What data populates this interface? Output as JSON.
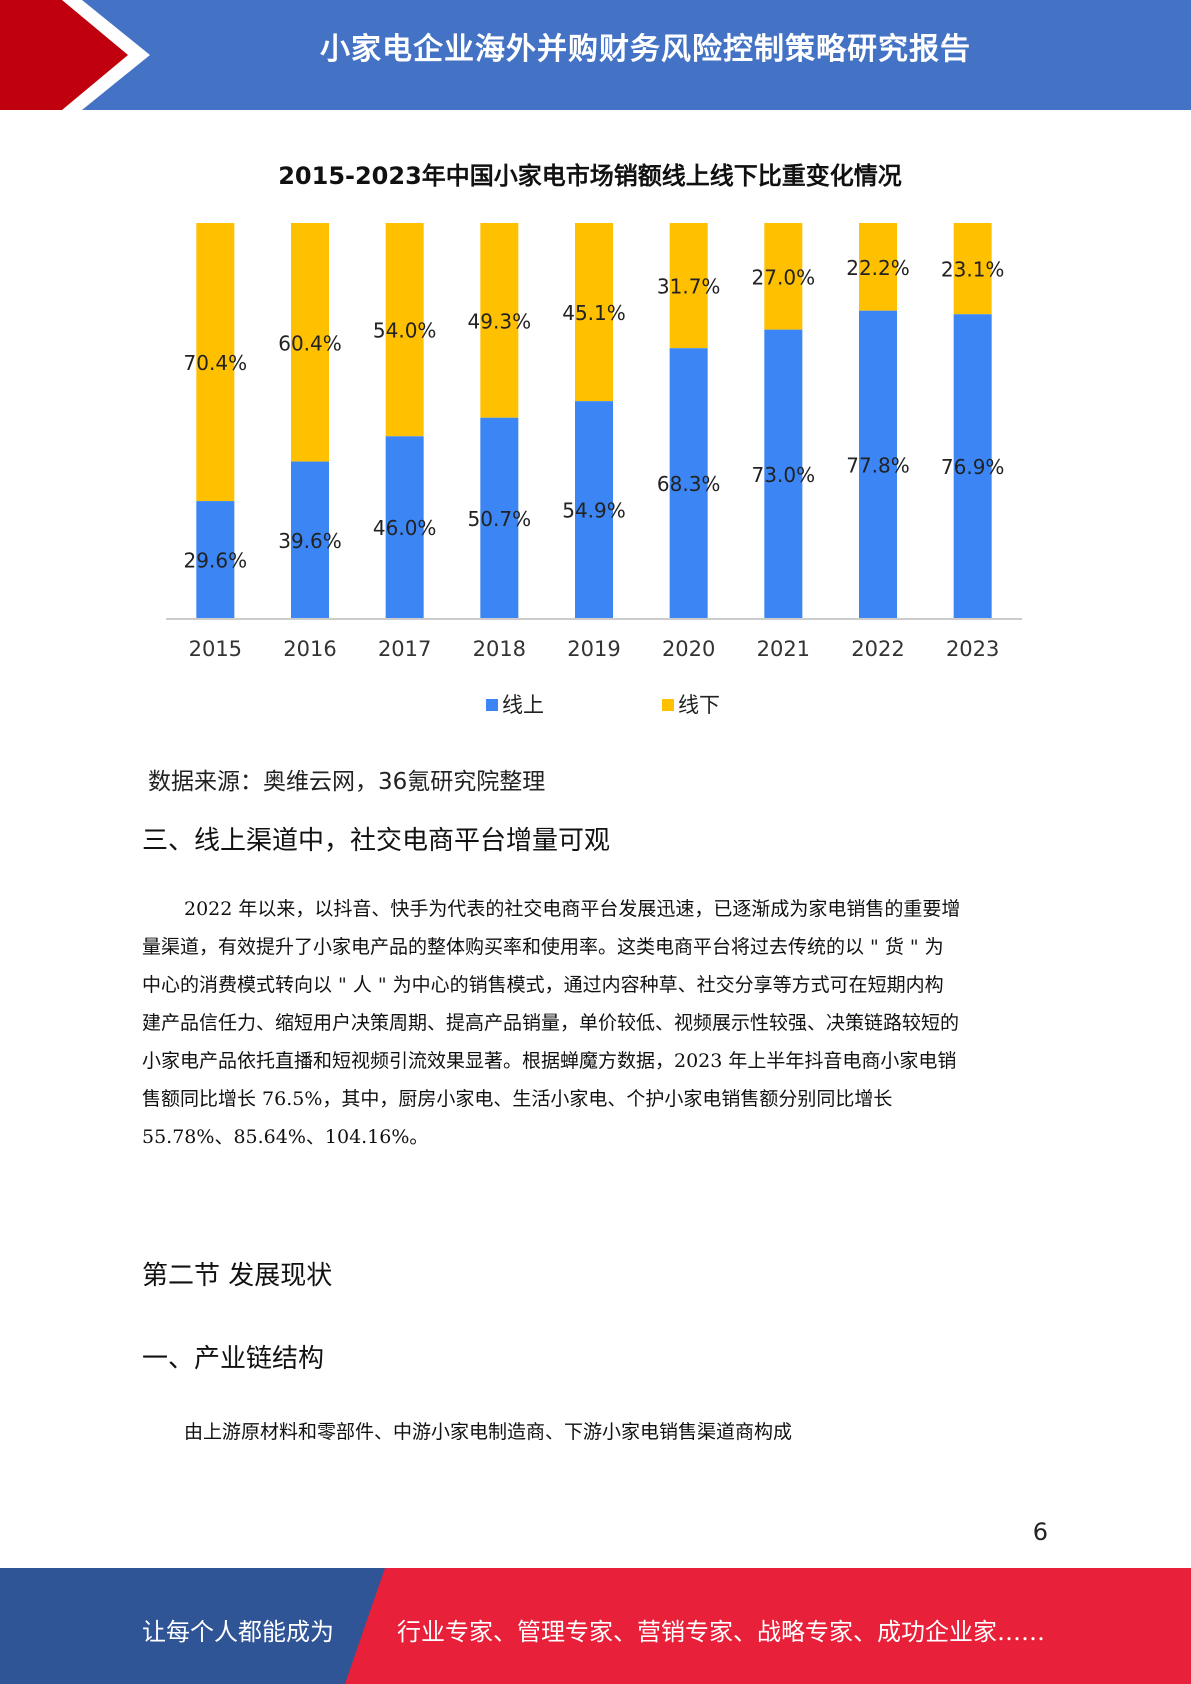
{
  "header": {
    "title": "小家电企业海外并购财务风险控制策略研究报告",
    "colors": {
      "band": "#4472c4",
      "arrow": "#c0000e"
    }
  },
  "chart_data": {
    "type": "bar",
    "stacked": true,
    "title": "2015-2023年中国小家电市场销额线上线下比重变化情况",
    "categories": [
      "2015",
      "2016",
      "2017",
      "2018",
      "2019",
      "2020",
      "2021",
      "2022",
      "2023"
    ],
    "series": [
      {
        "name": "线上",
        "color": "#3b86f4",
        "values": [
          29.6,
          39.6,
          46.0,
          50.7,
          54.9,
          68.3,
          73.0,
          77.8,
          76.9
        ],
        "labels": [
          "29.6%",
          "39.6%",
          "46.0%",
          "50.7%",
          "54.9%",
          "68.3%",
          "73.0%",
          "77.8%",
          "76.9%"
        ]
      },
      {
        "name": "线下",
        "color": "#ffc000",
        "values": [
          70.4,
          60.4,
          54.0,
          49.3,
          45.1,
          31.7,
          27.0,
          22.2,
          23.1
        ],
        "labels": [
          "70.4%",
          "60.4%",
          "54.0%",
          "49.3%",
          "45.1%",
          "31.7%",
          "27.0%",
          "22.2%",
          "23.1%"
        ]
      }
    ],
    "ylim": [
      0,
      100
    ],
    "legend": "bottom",
    "grid": false
  },
  "chart_source": "数据来源：奥维云网，36氪研究院整理",
  "section3": {
    "heading": "三、线上渠道中，社交电商平台增量可观",
    "lines": [
      "2022 年以来，以抖音、快手为代表的社交电商平台发展迅速，已逐渐成为家电销售的重要增",
      "量渠道，有效提升了小家电产品的整体购买率和使用率。这类电商平台将过去传统的以 \" 货 \" 为",
      "中心的消费模式转向以 \" 人 \" 为中心的销售模式，通过内容种草、社交分享等方式可在短期内构",
      "建产品信任力、缩短用户决策周期、提高产品销量，单价较低、视频展示性较强、决策链路较短的",
      "小家电产品依托直播和短视频引流效果显著。根据蝉魔方数据，2023 年上半年抖音电商小家电销",
      "售额同比增长 76.5%，其中，厨房小家电、生活小家电、个护小家电销售额分别同比增长",
      "55.78%、85.64%、104.16%。"
    ]
  },
  "section_node": {
    "heading": "第二节  发展现状"
  },
  "section1": {
    "heading": "一、产业链结构",
    "text": "由上游原材料和零部件、中游小家电制造商、下游小家电销售渠道商构成"
  },
  "page_number": "6",
  "footer": {
    "left_text": "让每个人都能成为",
    "right_text": "行业专家、管理专家、营销专家、战略专家、成功企业家……",
    "colors": {
      "left": "#2f5597",
      "right": "#e8203a"
    }
  }
}
